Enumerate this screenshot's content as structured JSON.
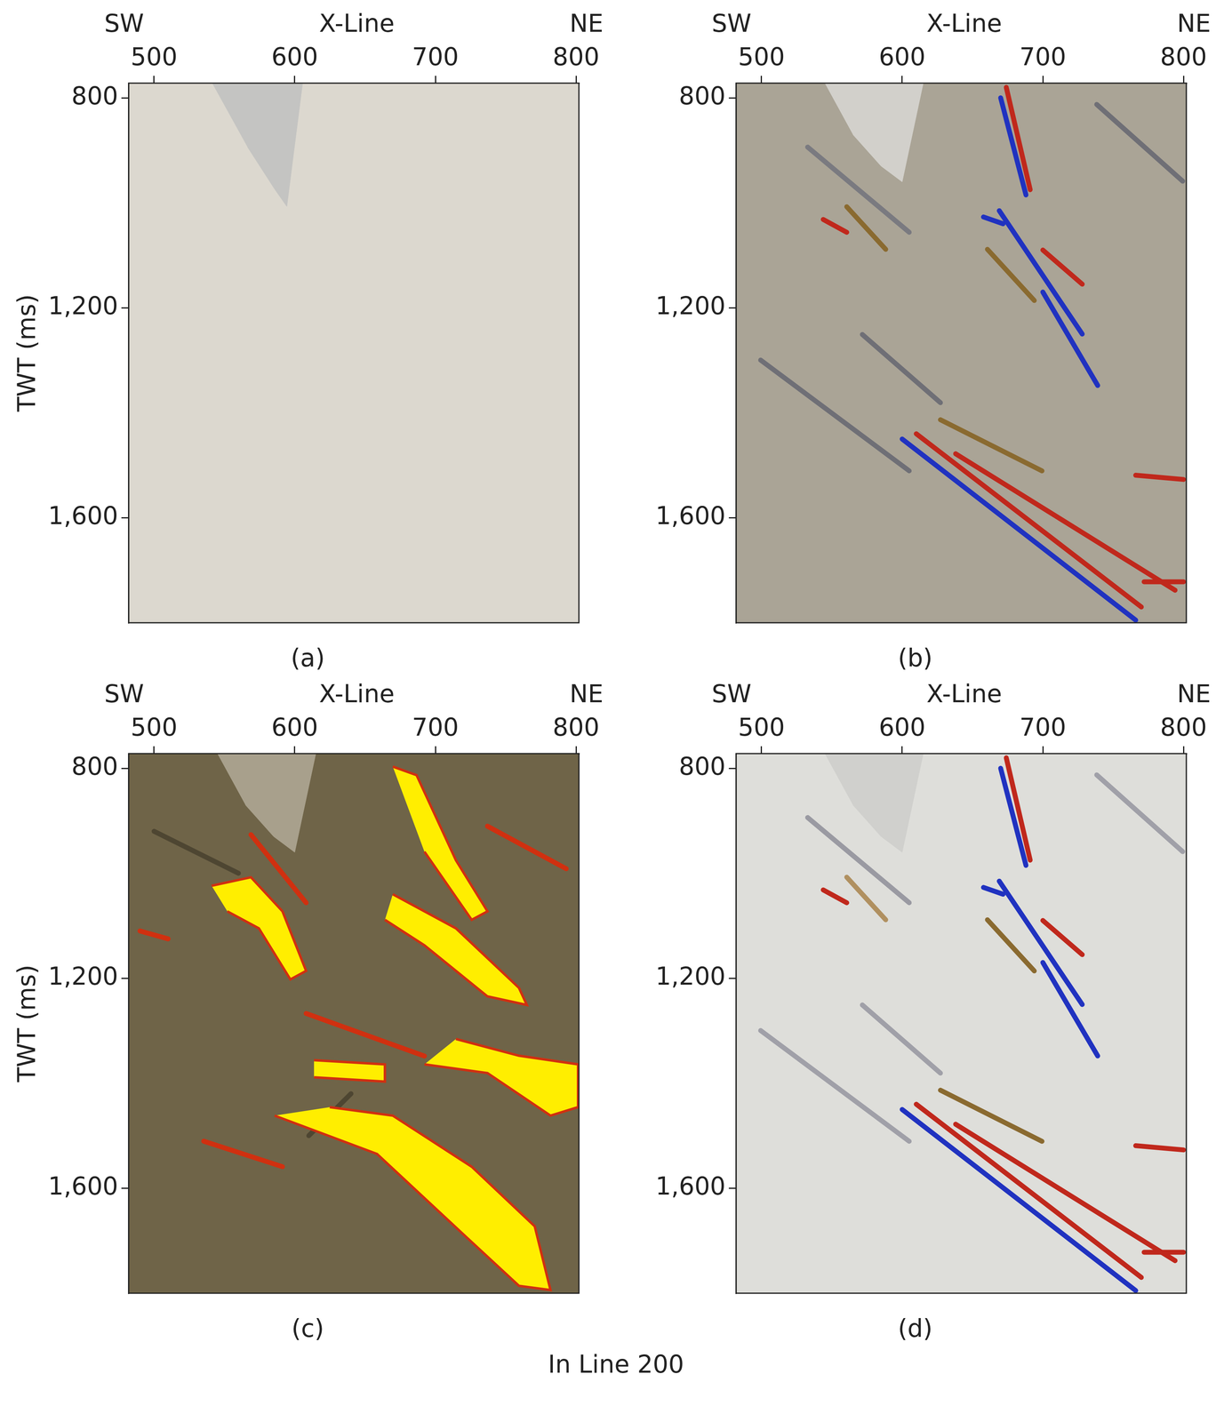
{
  "caption": "In Line 200",
  "chart_data": [
    {
      "type": "image",
      "label": "(a)",
      "x_label": "X-Line",
      "y_label": "TWT (ms)",
      "direction_left": "SW",
      "direction_right": "NE",
      "xlim": [
        482,
        802
      ],
      "xticks": [
        500,
        600,
        700,
        800
      ],
      "ylim": [
        772,
        1800
      ],
      "yticks": [
        800,
        1200,
        1600
      ],
      "grid": false,
      "background": "#dcd8cf",
      "mute_zone": {
        "color": "#c4c4c2",
        "points": [
          [
            541.3,
            772
          ],
          [
            605.6,
            772
          ],
          [
            594.4,
            1007
          ],
          [
            586,
            975
          ],
          [
            566.5,
            894
          ]
        ]
      },
      "bodies": [],
      "reflectors": []
    },
    {
      "type": "image",
      "label": "(b)",
      "x_label": "X-Line",
      "direction_left": "SW",
      "direction_right": "NE",
      "xlim": [
        482,
        802
      ],
      "xticks": [
        500,
        600,
        700,
        800
      ],
      "ylim": [
        772,
        1800
      ],
      "yticks": [
        800,
        1200,
        1600
      ],
      "grid": false,
      "background": "#aaa496",
      "mute_zone": {
        "color": "#d2d0cb",
        "points": [
          [
            545,
            772
          ],
          [
            615,
            772
          ],
          [
            600,
            960
          ],
          [
            585,
            930
          ],
          [
            565,
            870
          ]
        ]
      },
      "bodies": [],
      "reflectors": [
        {
          "color": "#7a7a80",
          "points": [
            [
              532.8,
              893.8
            ],
            [
              605.0,
              1056.1
            ]
          ]
        },
        {
          "color": "#8a6a30",
          "points": [
            [
              560.6,
              1007.4
            ],
            [
              588.3,
              1088.6
            ]
          ]
        },
        {
          "color": "#6f6f76",
          "points": [
            [
              499.4,
              1299.6
            ],
            [
              605.0,
              1510.6
            ]
          ]
        },
        {
          "color": "#6f6f76",
          "points": [
            [
              571.7,
              1250.9
            ],
            [
              627.2,
              1380.8
            ]
          ]
        },
        {
          "color": "#8a6a30",
          "points": [
            [
              627.2,
              1413.2
            ],
            [
              699.4,
              1510.6
            ]
          ]
        },
        {
          "color": "#6f6f76",
          "points": [
            [
              738.3,
              812.6
            ],
            [
              799.4,
              958.7
            ]
          ]
        },
        {
          "color": "#8a6a30",
          "points": [
            [
              660.6,
              1088.6
            ],
            [
              693.9,
              1186
            ]
          ]
        },
        {
          "color": "#c0281c",
          "points": [
            [
              543.9,
              1031.7
            ],
            [
              560.6,
              1056.1
            ]
          ]
        },
        {
          "color": "#2032c0",
          "points": [
            [
              657.8,
              1026.9
            ],
            [
              671.7,
              1039.9
            ]
          ]
        },
        {
          "color": "#c0281c",
          "points": [
            [
              674,
              780
            ],
            [
              691,
              975
            ]
          ]
        },
        {
          "color": "#2032c0",
          "points": [
            [
              670,
              800
            ],
            [
              688,
              985
            ]
          ]
        },
        {
          "color": "#2032c0",
          "points": [
            [
              669,
              1015
            ],
            [
              728,
              1250
            ]
          ]
        },
        {
          "color": "#2032c0",
          "points": [
            [
              700,
              1170
            ],
            [
              739,
              1348
            ]
          ]
        },
        {
          "color": "#c0281c",
          "points": [
            [
              700,
              1090
            ],
            [
              728,
              1155
            ]
          ]
        },
        {
          "color": "#2032c0",
          "points": [
            [
              600,
              1450
            ],
            [
              766,
              1795
            ]
          ]
        },
        {
          "color": "#c0281c",
          "points": [
            [
              610,
              1440
            ],
            [
              770,
              1770
            ]
          ]
        },
        {
          "color": "#c0281c",
          "points": [
            [
              638,
              1478
            ],
            [
              794,
              1738
            ]
          ]
        },
        {
          "color": "#c0281c",
          "points": [
            [
              766,
              1519
            ],
            [
              800,
              1527
            ]
          ]
        },
        {
          "color": "#c0281c",
          "points": [
            [
              772,
              1722
            ],
            [
              800,
              1722
            ]
          ]
        }
      ]
    },
    {
      "type": "image",
      "label": "(c)",
      "x_label": "X-Line",
      "y_label": "TWT (ms)",
      "direction_left": "SW",
      "direction_right": "NE",
      "xlim": [
        482,
        802
      ],
      "xticks": [
        500,
        600,
        700,
        800
      ],
      "ylim": [
        772,
        1800
      ],
      "yticks": [
        800,
        1200,
        1600
      ],
      "grid": false,
      "background": "#6f6448",
      "mute_zone": {
        "color": "#a8a08c",
        "points": [
          [
            545,
            772
          ],
          [
            615,
            772
          ],
          [
            600,
            960
          ],
          [
            585,
            930
          ],
          [
            565,
            870
          ]
        ]
      },
      "bodies": [
        {
          "color": "#ffee00",
          "edge_color": "#d03010",
          "points": [
            [
              585.7,
              1461.7
            ],
            [
              658.5,
              1534.7
            ],
            [
              720.2,
              1688.7
            ],
            [
              759.4,
              1786
            ],
            [
              781.8,
              1794
            ],
            [
              770.6,
              1672.5
            ],
            [
              725.8,
              1559
            ],
            [
              669.7,
              1461.7
            ],
            [
              624.9,
              1445.5
            ]
          ]
        },
        {
          "color": "#ffee00",
          "edge_color": "#d03010",
          "points": [
            [
              692.2,
              1364
            ],
            [
              737,
              1380.6
            ],
            [
              781.8,
              1461.7
            ],
            [
              801.4,
              1445.5
            ],
            [
              801.4,
              1364
            ],
            [
              759.4,
              1347.6
            ],
            [
              714.6,
              1315.7
            ]
          ]
        },
        {
          "color": "#ffee00",
          "edge_color": "#d03010",
          "points": [
            [
              669.7,
              796.8
            ],
            [
              686.6,
              813
            ],
            [
              714.6,
              975.2
            ],
            [
              737,
              1072.5
            ],
            [
              725.8,
              1088.7
            ],
            [
              692.2,
              958.9
            ]
          ]
        },
        {
          "color": "#ffee00",
          "edge_color": "#d03010",
          "points": [
            [
              669.7,
              1040
            ],
            [
              714.6,
              1104.9
            ],
            [
              759.4,
              1218.4
            ],
            [
              765,
              1250.9
            ],
            [
              737,
              1234.6
            ],
            [
              692.2,
              1137.3
            ],
            [
              664.1,
              1088.7
            ]
          ]
        },
        {
          "color": "#ffee00",
          "edge_color": "#d03010",
          "points": [
            [
              540.9,
              1023.8
            ],
            [
              568.9,
              1007.6
            ],
            [
              591.3,
              1072.5
            ],
            [
              608.1,
              1186
            ],
            [
              596.9,
              1202.2
            ],
            [
              574.5,
              1104.9
            ],
            [
              552.1,
              1072.5
            ]
          ]
        },
        {
          "color": "#ffee00",
          "edge_color": "#d03010",
          "points": [
            [
              613.7,
              1356
            ],
            [
              664.1,
              1364
            ],
            [
              664.1,
              1396.8
            ],
            [
              613.7,
              1388.6
            ]
          ]
        }
      ],
      "reflectors": [
        {
          "color": "#d03010",
          "points": [
            [
              568.9,
              926.5
            ],
            [
              608.1,
              1056.2
            ]
          ]
        },
        {
          "color": "#d03010",
          "points": [
            [
              608.1,
              1267.1
            ],
            [
              692.2,
              1348.2
            ]
          ]
        },
        {
          "color": "#d03010",
          "points": [
            [
              535.3,
              1510.4
            ],
            [
              591.3,
              1559
            ]
          ]
        },
        {
          "color": "#d03010",
          "points": [
            [
              737,
              910.3
            ],
            [
              793,
              991.4
            ]
          ]
        },
        {
          "color": "#d03010",
          "points": [
            [
              490,
              1110
            ],
            [
              510,
              1125
            ]
          ]
        },
        {
          "color": "#4e4632",
          "points": [
            [
              500,
              920
            ],
            [
              560,
              1000
            ]
          ]
        },
        {
          "color": "#4e4632",
          "points": [
            [
              610,
              1500
            ],
            [
              640,
              1420
            ]
          ]
        }
      ]
    },
    {
      "type": "image",
      "label": "(d)",
      "x_label": "X-Line",
      "direction_left": "SW",
      "direction_right": "NE",
      "xlim": [
        482,
        802
      ],
      "xticks": [
        500,
        600,
        700,
        800
      ],
      "ylim": [
        772,
        1800
      ],
      "yticks": [
        800,
        1200,
        1600
      ],
      "grid": false,
      "background": "#dededa",
      "mute_zone": {
        "color": "#d0d0cd",
        "points": [
          [
            545,
            772
          ],
          [
            615,
            772
          ],
          [
            600,
            960
          ],
          [
            585,
            930
          ],
          [
            565,
            870
          ]
        ]
      },
      "bodies": [],
      "reflectors": [
        {
          "color": "#9a9aa2",
          "points": [
            [
              532.8,
              893.8
            ],
            [
              605.0,
              1056.1
            ]
          ]
        },
        {
          "color": "#b09060",
          "points": [
            [
              560.6,
              1007.4
            ],
            [
              588.3,
              1088.6
            ]
          ]
        },
        {
          "color": "#a0a0a8",
          "points": [
            [
              499.4,
              1299.6
            ],
            [
              605.0,
              1510.6
            ]
          ]
        },
        {
          "color": "#a0a0a8",
          "points": [
            [
              571.7,
              1250.9
            ],
            [
              627.2,
              1380.8
            ]
          ]
        },
        {
          "color": "#8a6a30",
          "points": [
            [
              627.2,
              1413.2
            ],
            [
              699.4,
              1510.6
            ]
          ]
        },
        {
          "color": "#a0a0a8",
          "points": [
            [
              738.3,
              812.6
            ],
            [
              799.4,
              958.7
            ]
          ]
        },
        {
          "color": "#8a6a30",
          "points": [
            [
              660.6,
              1088.6
            ],
            [
              693.9,
              1186
            ]
          ]
        },
        {
          "color": "#c0281c",
          "points": [
            [
              543.9,
              1031.7
            ],
            [
              560.6,
              1056.1
            ]
          ]
        },
        {
          "color": "#2032c0",
          "points": [
            [
              657.8,
              1026.9
            ],
            [
              671.7,
              1039.9
            ]
          ]
        },
        {
          "color": "#c0281c",
          "points": [
            [
              674,
              780
            ],
            [
              691,
              975
            ]
          ]
        },
        {
          "color": "#2032c0",
          "points": [
            [
              670,
              800
            ],
            [
              688,
              985
            ]
          ]
        },
        {
          "color": "#2032c0",
          "points": [
            [
              669,
              1015
            ],
            [
              728,
              1250
            ]
          ]
        },
        {
          "color": "#2032c0",
          "points": [
            [
              700,
              1170
            ],
            [
              739,
              1348
            ]
          ]
        },
        {
          "color": "#c0281c",
          "points": [
            [
              700,
              1090
            ],
            [
              728,
              1155
            ]
          ]
        },
        {
          "color": "#2032c0",
          "points": [
            [
              600,
              1450
            ],
            [
              766,
              1795
            ]
          ]
        },
        {
          "color": "#c0281c",
          "points": [
            [
              610,
              1440
            ],
            [
              770,
              1770
            ]
          ]
        },
        {
          "color": "#c0281c",
          "points": [
            [
              638,
              1478
            ],
            [
              794,
              1738
            ]
          ]
        },
        {
          "color": "#c0281c",
          "points": [
            [
              766,
              1519
            ],
            [
              800,
              1527
            ]
          ]
        },
        {
          "color": "#c0281c",
          "points": [
            [
              772,
              1722
            ],
            [
              800,
              1722
            ]
          ]
        }
      ]
    }
  ]
}
